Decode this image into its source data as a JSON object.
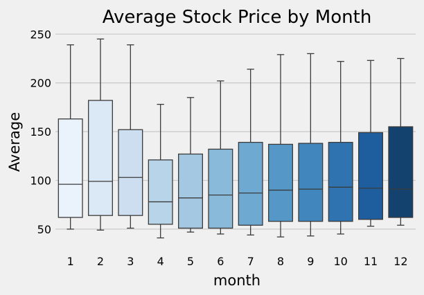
{
  "chart_data": {
    "type": "box",
    "title": "Average Stock Price by Month",
    "xlabel": "month",
    "ylabel": "Average",
    "ylim": [
      35,
      258
    ],
    "yticks": [
      50,
      100,
      150,
      200,
      250
    ],
    "grid": "horizontal",
    "categories": [
      "1",
      "2",
      "3",
      "4",
      "5",
      "6",
      "7",
      "8",
      "9",
      "10",
      "11",
      "12"
    ],
    "boxes": [
      {
        "month": "1",
        "whisker_low": 50,
        "q1": 62,
        "median": 96,
        "q3": 163,
        "whisker_high": 239,
        "color": "#eaf2fb"
      },
      {
        "month": "2",
        "whisker_low": 49,
        "q1": 64,
        "median": 99,
        "q3": 182,
        "whisker_high": 245,
        "color": "#dbe8f5"
      },
      {
        "month": "3",
        "whisker_low": 51,
        "q1": 64,
        "median": 103,
        "q3": 152,
        "whisker_high": 239,
        "color": "#ccdeef"
      },
      {
        "month": "4",
        "whisker_low": 41,
        "q1": 55,
        "median": 78,
        "q3": 121,
        "whisker_high": 178,
        "color": "#b8d4e8"
      },
      {
        "month": "5",
        "whisker_low": 47,
        "q1": 51,
        "median": 82,
        "q3": 127,
        "whisker_high": 185,
        "color": "#a4c8e2"
      },
      {
        "month": "6",
        "whisker_low": 45,
        "q1": 51,
        "median": 85,
        "q3": 132,
        "whisker_high": 202,
        "color": "#89bad9"
      },
      {
        "month": "7",
        "whisker_low": 44,
        "q1": 54,
        "median": 87,
        "q3": 139,
        "whisker_high": 214,
        "color": "#6ea9d1"
      },
      {
        "month": "8",
        "whisker_low": 42,
        "q1": 58,
        "median": 90,
        "q3": 137,
        "whisker_high": 229,
        "color": "#5598c7"
      },
      {
        "month": "9",
        "whisker_low": 43,
        "q1": 58,
        "median": 91,
        "q3": 138,
        "whisker_high": 230,
        "color": "#4186bc"
      },
      {
        "month": "10",
        "whisker_low": 45,
        "q1": 58,
        "median": 93,
        "q3": 139,
        "whisker_high": 222,
        "color": "#2f73b0"
      },
      {
        "month": "11",
        "whisker_low": 53,
        "q1": 60,
        "median": 92,
        "q3": 149,
        "whisker_high": 223,
        "color": "#1e5e9f"
      },
      {
        "month": "12",
        "whisker_low": 54,
        "q1": 62,
        "median": 91,
        "q3": 155,
        "whisker_high": 225,
        "color": "#14426f"
      }
    ]
  }
}
